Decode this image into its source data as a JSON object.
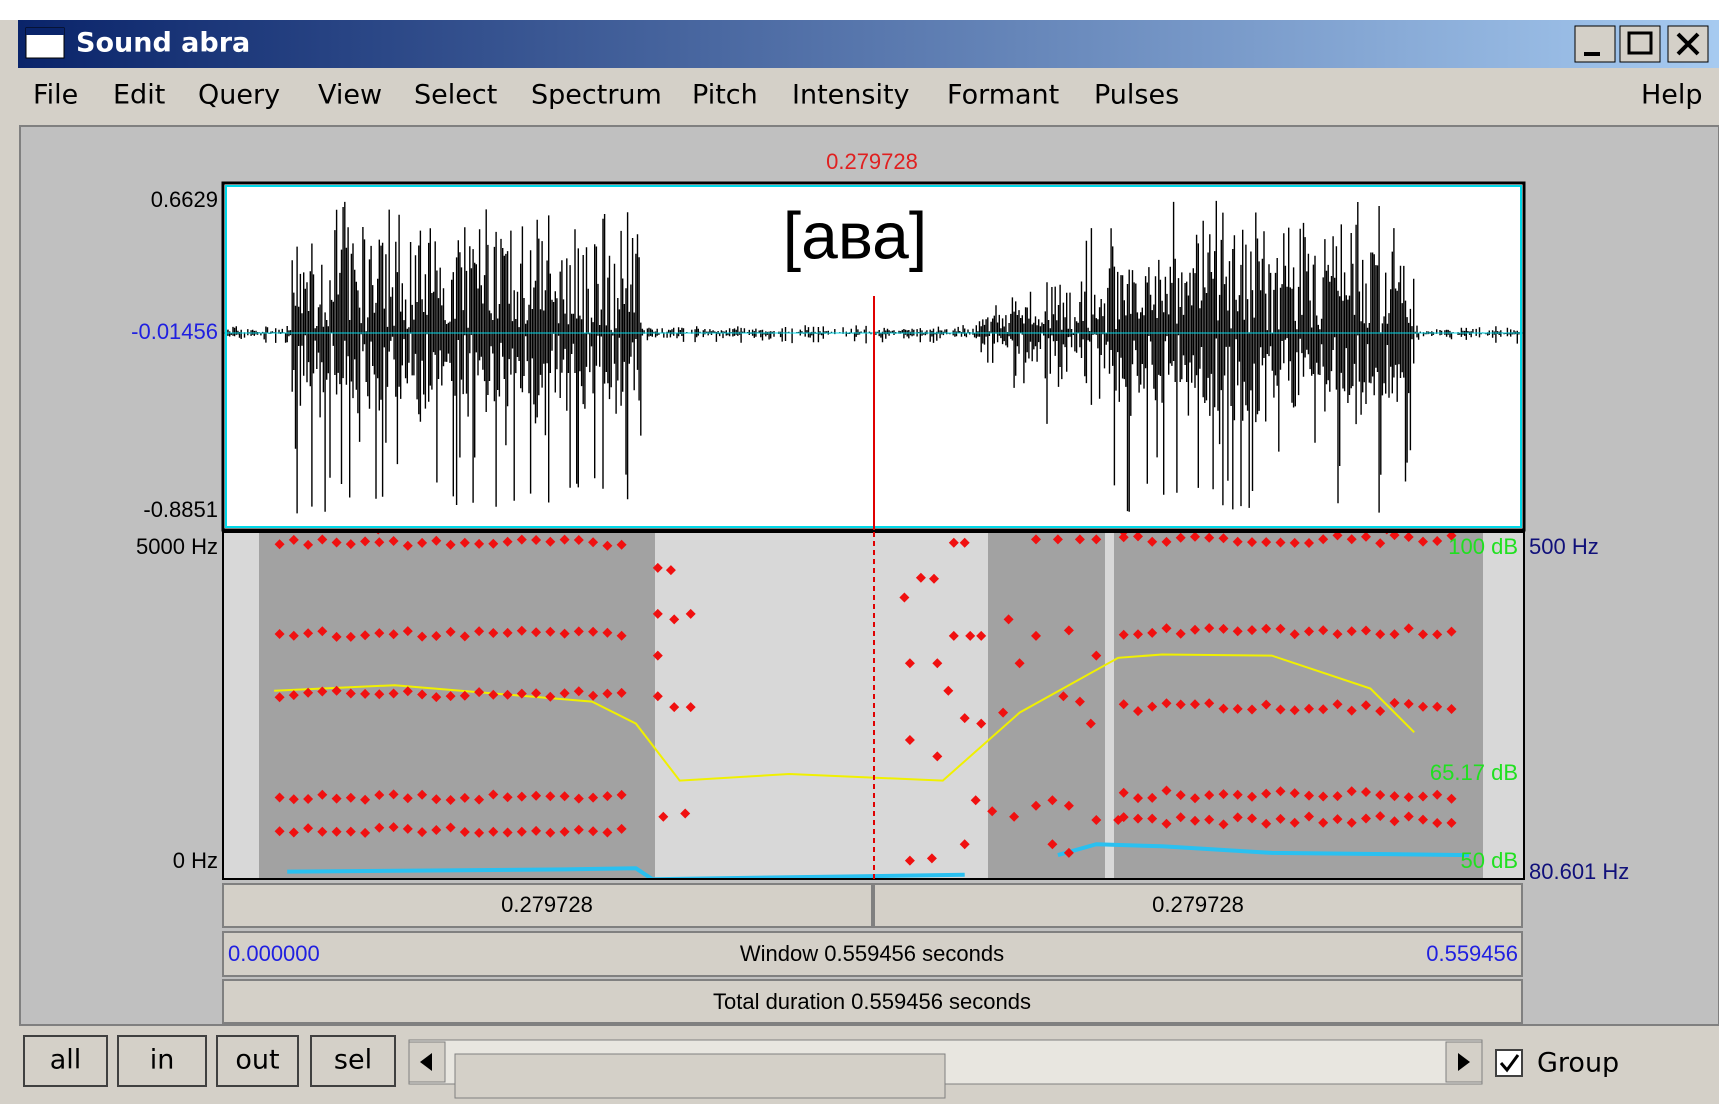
{
  "window": {
    "title": "Sound abra"
  },
  "menu": [
    "File",
    "Edit",
    "Query",
    "View",
    "Select",
    "Spectrum",
    "Pitch",
    "Intensity",
    "Formant",
    "Pulses"
  ],
  "help_menu": "Help",
  "cursor_time": "0.279728",
  "annotation": "[ава]",
  "waveform": {
    "max": "0.6629",
    "cursor_value": "-0.01456",
    "min": "-0.8851"
  },
  "spectrogram": {
    "freq_top": "5000 Hz",
    "freq_bottom": "0 Hz",
    "pitch_top": "500 Hz",
    "pitch_bottom": "80.601 Hz",
    "intensity_top": "100 dB",
    "intensity_value": "65.17 dB",
    "intensity_bottom": "50 dB"
  },
  "time_bar": {
    "left": "0.279728",
    "right": "0.279728",
    "window_start": "0.000000",
    "window": "Window 0.559456 seconds",
    "window_end": "0.559456",
    "total": "Total duration 0.559456 seconds"
  },
  "buttons": [
    "all",
    "in",
    "out",
    "sel"
  ],
  "group_label": "Group"
}
